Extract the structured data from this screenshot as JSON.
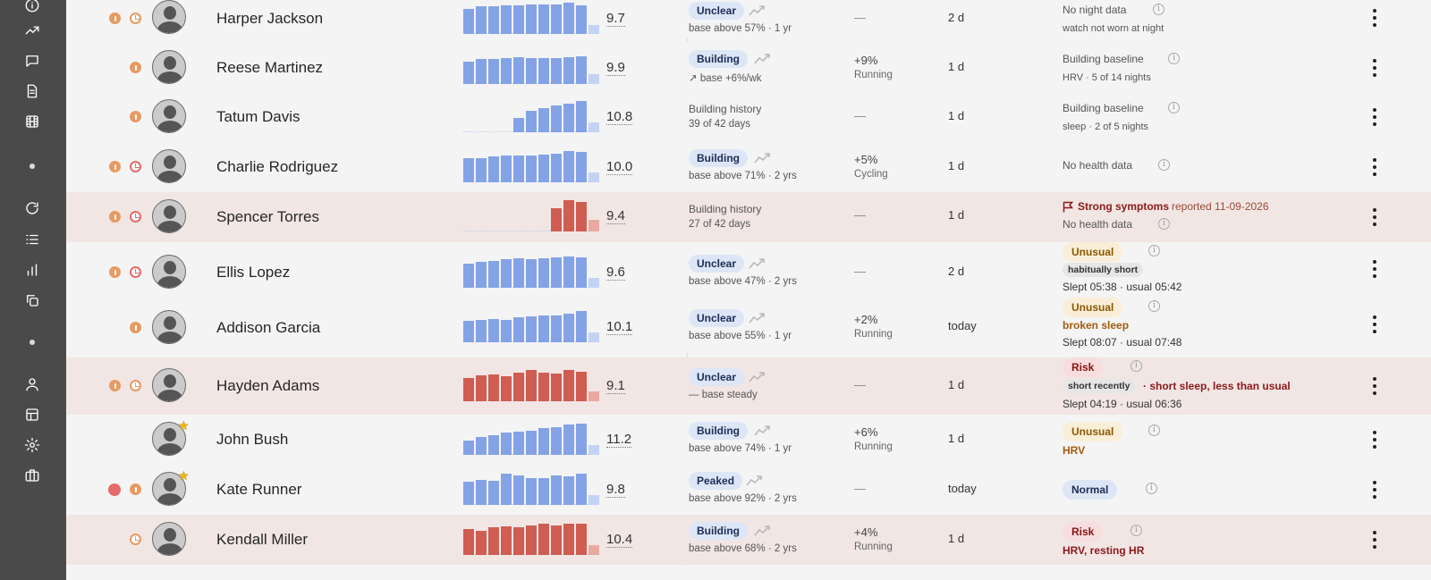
{
  "sidebar": {
    "icons": [
      "info-icon",
      "trending-icon",
      "chat-icon",
      "document-icon",
      "film-icon",
      "refresh-icon",
      "list-icon",
      "bar-chart-icon",
      "copy-icon",
      "user-icon",
      "table-icon",
      "gear-icon",
      "briefcase-icon"
    ]
  },
  "rows": [
    {
      "name": "Harper Jackson",
      "score": "9.7",
      "badge": "Unclear",
      "sub": "base above 57% · 1 yr",
      "change": "—",
      "ago": "2 d",
      "note1": "No night data",
      "note2": "watch not worn at night"
    },
    {
      "name": "Reese Martinez",
      "score": "9.9",
      "badge": "Building",
      "sub": "↗ base +6%/wk",
      "change": "+9%",
      "change_sub": "Running",
      "ago": "1 d",
      "note1": "Building baseline",
      "note2": "HRV · 5 of 14 nights"
    },
    {
      "name": "Tatum Davis",
      "score": "10.8",
      "hist1": "Building history",
      "hist2": "39 of 42 days",
      "change": "—",
      "ago": "1 d",
      "note1": "Building baseline",
      "note2": "sleep · 2 of 5 nights"
    },
    {
      "name": "Charlie Rodriguez",
      "score": "10.0",
      "badge": "Building",
      "sub": "base above 71% · 2 yrs",
      "change": "+5%",
      "change_sub": "Cycling",
      "ago": "1 d",
      "note1": "No health data"
    },
    {
      "name": "Spencer Torres",
      "score": "9.4",
      "hist1": "Building history",
      "hist2": "27 of 42 days",
      "change": "—",
      "ago": "1 d",
      "symptom": "Strong symptoms",
      "reported": "reported 11-09-2026",
      "note2": "No health data"
    },
    {
      "name": "Ellis Lopez",
      "score": "9.6",
      "badge": "Unclear",
      "sub": "base above 47% · 2 yrs",
      "change": "—",
      "ago": "2 d",
      "pill": "Unusual",
      "chip": "habitually short",
      "slept": "Slept 05:38 · usual 05:42"
    },
    {
      "name": "Addison Garcia",
      "score": "10.1",
      "badge": "Unclear",
      "sub": "base above 55% · 1 yr",
      "change": "+2%",
      "change_sub": "Running",
      "ago": "today",
      "pill": "Unusual",
      "detail": "broken sleep",
      "slept": "Slept 08:07 · usual 07:48"
    },
    {
      "name": "Hayden Adams",
      "score": "9.1",
      "badge": "Unclear",
      "sub": "— base steady",
      "change": "—",
      "ago": "1 d",
      "pill": "Risk",
      "chip": "short recently",
      "detail": "· short sleep, less than usual",
      "slept": "Slept 04:19 · usual 06:36"
    },
    {
      "name": "John Bush",
      "score": "11.2",
      "badge": "Building",
      "sub": "base above 74% · 1 yr",
      "change": "+6%",
      "change_sub": "Running",
      "ago": "1 d",
      "pill": "Unusual",
      "detail": "HRV"
    },
    {
      "name": "Kate Runner",
      "score": "9.8",
      "badge": "Peaked",
      "sub": "base above 92% · 2 yrs",
      "change": "—",
      "ago": "today",
      "pill": "Normal"
    },
    {
      "name": "Kendall Miller",
      "score": "10.4",
      "badge": "Building",
      "sub": "base above 68% · 2 yrs",
      "change": "+4%",
      "change_sub": "Running",
      "ago": "1 d",
      "pill": "Risk",
      "detail": "HRV, resting HR"
    }
  ],
  "bar_levels": {
    "harper": [
      0.78,
      0.86,
      0.86,
      0.9,
      0.9,
      0.92,
      0.92,
      0.92,
      0.96,
      0.9,
      0.28
    ],
    "reese": [
      0.7,
      0.78,
      0.78,
      0.8,
      0.82,
      0.8,
      0.8,
      0.8,
      0.84,
      0.86,
      0.3
    ],
    "tatum": [
      0,
      0,
      0,
      0,
      0.44,
      0.66,
      0.76,
      0.82,
      0.9,
      0.96,
      0.3
    ],
    "charlie": [
      0.74,
      0.76,
      0.8,
      0.82,
      0.84,
      0.84,
      0.86,
      0.9,
      0.96,
      0.94,
      0.3
    ],
    "spencer": [
      0,
      0,
      0,
      0,
      0,
      0,
      0.72,
      0.96,
      0.92,
      0.36
    ],
    "ellis": [
      0.74,
      0.8,
      0.84,
      0.88,
      0.92,
      0.88,
      0.92,
      0.94,
      0.96,
      0.94,
      0.3
    ],
    "addison": [
      0.66,
      0.7,
      0.72,
      0.7,
      0.78,
      0.8,
      0.82,
      0.82,
      0.9,
      0.96,
      0.3
    ],
    "hayden": [
      0.72,
      0.8,
      0.82,
      0.78,
      0.88,
      0.96,
      0.9,
      0.86,
      0.96,
      0.92,
      0.3
    ],
    "john": [
      0.44,
      0.56,
      0.62,
      0.7,
      0.72,
      0.76,
      0.82,
      0.86,
      0.94,
      0.98,
      0.3
    ],
    "kate": [
      0.72,
      0.78,
      0.76,
      0.96,
      0.92,
      0.84,
      0.82,
      0.92,
      0.9,
      0.96,
      0.3
    ],
    "kendall": [
      0.8,
      0.76,
      0.86,
      0.9,
      0.86,
      0.92,
      0.96,
      0.92,
      0.98,
      0.96,
      0.3
    ]
  },
  "colors": {
    "blue": "#84a3e6",
    "blue_light": "#c3d3f3",
    "red": "#cf5d51",
    "red_light": "#e9a9a1"
  }
}
